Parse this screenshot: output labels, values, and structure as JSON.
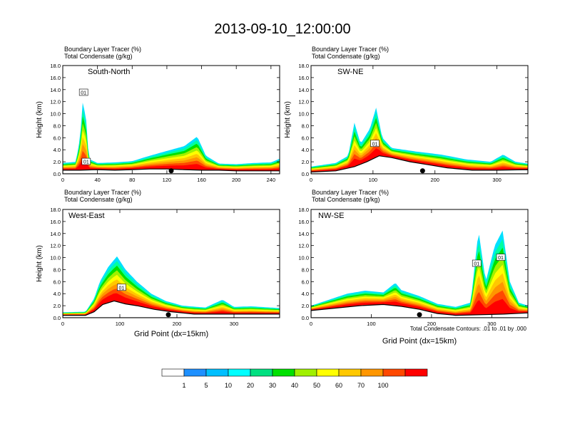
{
  "title": "2013-09-10_12:00:00",
  "field_labels": [
    "Boundary Layer Tracer   (%)",
    "Total Condensate   (g/kg)"
  ],
  "contour_info": "Total Condensate Contours: .01 to .01 by .000",
  "colorbar": {
    "levels": [
      "1",
      "5",
      "10",
      "20",
      "30",
      "40",
      "50",
      "60",
      "70",
      "100"
    ],
    "colors": [
      "#ffffff",
      "#1e90ff",
      "#00bfff",
      "#00ffff",
      "#00e080",
      "#00e000",
      "#a0f000",
      "#ffff00",
      "#ffc800",
      "#ff9600",
      "#ff4800",
      "#ff0000"
    ]
  },
  "chart_data": [
    {
      "type": "contour",
      "panel": "top-left",
      "label": "South-North",
      "ylabel": "Height (km)",
      "xlabel": "",
      "xlim": [
        0,
        250
      ],
      "ylim": [
        0,
        18
      ],
      "xticks": [
        "0",
        "40",
        "80",
        "120",
        "160",
        "200",
        "240"
      ],
      "xtick_values": [
        0,
        40,
        80,
        120,
        160,
        200,
        240
      ],
      "yticks": [
        "0.0",
        "2.0",
        "4.0",
        "6.0",
        "8.0",
        "10.0",
        "12.0",
        "14.0",
        "16.0",
        "18.0"
      ],
      "marker_x": 125,
      "contour_labels": [
        {
          "text": "01",
          "x": 24,
          "y": 13.5
        },
        {
          "text": "01",
          "x": 27,
          "y": 2.0
        }
      ],
      "terrain": [
        [
          0,
          0.6
        ],
        [
          20,
          0.6
        ],
        [
          40,
          0.7
        ],
        [
          60,
          0.6
        ],
        [
          80,
          0.7
        ],
        [
          100,
          0.8
        ],
        [
          120,
          0.8
        ],
        [
          140,
          0.7
        ],
        [
          160,
          0.6
        ],
        [
          180,
          0.6
        ],
        [
          200,
          0.5
        ],
        [
          220,
          0.5
        ],
        [
          250,
          0.5
        ]
      ],
      "tracer_top": [
        [
          0,
          1.8
        ],
        [
          15,
          2.0
        ],
        [
          20,
          6.0
        ],
        [
          23,
          12.0
        ],
        [
          27,
          9.0
        ],
        [
          30,
          2.5
        ],
        [
          40,
          1.8
        ],
        [
          60,
          1.9
        ],
        [
          80,
          2.1
        ],
        [
          100,
          3.0
        ],
        [
          120,
          3.8
        ],
        [
          140,
          4.6
        ],
        [
          155,
          6.2
        ],
        [
          165,
          3.0
        ],
        [
          180,
          1.7
        ],
        [
          200,
          1.6
        ],
        [
          220,
          1.8
        ],
        [
          240,
          1.9
        ],
        [
          250,
          2.5
        ]
      ]
    },
    {
      "type": "contour",
      "panel": "top-right",
      "label": "SW-NE",
      "ylabel": "Height (km)",
      "xlabel": "",
      "xlim": [
        0,
        350
      ],
      "ylim": [
        0,
        18
      ],
      "xticks": [
        "0",
        "100",
        "200",
        "300"
      ],
      "xtick_values": [
        0,
        100,
        200,
        300
      ],
      "yticks": [
        "0.0",
        "2.0",
        "4.0",
        "6.0",
        "8.0",
        "10.0",
        "12.0",
        "14.0",
        "16.0",
        "18.0"
      ],
      "marker_x": 180,
      "contour_labels": [
        {
          "text": "01",
          "x": 103,
          "y": 5.0
        }
      ],
      "terrain": [
        [
          0,
          0.3
        ],
        [
          40,
          0.5
        ],
        [
          70,
          1.2
        ],
        [
          90,
          2.0
        ],
        [
          110,
          3.0
        ],
        [
          130,
          2.7
        ],
        [
          160,
          2.0
        ],
        [
          190,
          1.5
        ],
        [
          220,
          1.0
        ],
        [
          260,
          0.6
        ],
        [
          300,
          0.6
        ],
        [
          350,
          0.7
        ]
      ],
      "tracer_top": [
        [
          0,
          1.2
        ],
        [
          40,
          1.8
        ],
        [
          60,
          3.0
        ],
        [
          70,
          8.5
        ],
        [
          80,
          5.0
        ],
        [
          95,
          7.5
        ],
        [
          105,
          11.0
        ],
        [
          115,
          6.0
        ],
        [
          130,
          4.3
        ],
        [
          170,
          3.7
        ],
        [
          210,
          3.2
        ],
        [
          250,
          2.4
        ],
        [
          290,
          2.0
        ],
        [
          310,
          3.2
        ],
        [
          330,
          2.0
        ],
        [
          350,
          1.7
        ]
      ]
    },
    {
      "type": "contour",
      "panel": "bottom-left",
      "label": "West-East",
      "ylabel": "Height (km)",
      "xlabel": "Grid Point (dx=15km)",
      "xlim": [
        0,
        380
      ],
      "ylim": [
        0,
        18
      ],
      "xticks": [
        "0",
        "100",
        "200",
        "300"
      ],
      "xtick_values": [
        0,
        100,
        200,
        300
      ],
      "yticks": [
        "0.0",
        "2.0",
        "4.0",
        "6.0",
        "8.0",
        "10.0",
        "12.0",
        "14.0",
        "16.0",
        "18.0"
      ],
      "marker_x": 185,
      "contour_labels": [
        {
          "text": "01",
          "x": 103,
          "y": 5.0
        }
      ],
      "terrain": [
        [
          0,
          0.4
        ],
        [
          40,
          0.4
        ],
        [
          55,
          1.0
        ],
        [
          70,
          2.2
        ],
        [
          90,
          2.8
        ],
        [
          110,
          2.3
        ],
        [
          130,
          2.0
        ],
        [
          160,
          1.4
        ],
        [
          190,
          1.0
        ],
        [
          230,
          0.6
        ],
        [
          280,
          0.6
        ],
        [
          330,
          0.6
        ],
        [
          380,
          0.6
        ]
      ],
      "tracer_top": [
        [
          0,
          0.9
        ],
        [
          40,
          1.0
        ],
        [
          55,
          3.2
        ],
        [
          65,
          6.0
        ],
        [
          80,
          8.5
        ],
        [
          95,
          10.2
        ],
        [
          110,
          8.0
        ],
        [
          130,
          6.0
        ],
        [
          155,
          4.0
        ],
        [
          180,
          2.8
        ],
        [
          210,
          2.0
        ],
        [
          250,
          1.7
        ],
        [
          280,
          3.0
        ],
        [
          300,
          1.8
        ],
        [
          330,
          1.9
        ],
        [
          380,
          1.6
        ]
      ]
    },
    {
      "type": "contour",
      "panel": "bottom-right",
      "label": "NW-SE",
      "ylabel": "",
      "xlabel": "Grid Point (dx=15km)",
      "xlim": [
        0,
        360
      ],
      "ylim": [
        0,
        18
      ],
      "xticks": [
        "0",
        "100",
        "200",
        "300"
      ],
      "xtick_values": [
        0,
        100,
        200,
        300
      ],
      "yticks": [
        "0.0",
        "2.0",
        "4.0",
        "6.0",
        "8.0",
        "10.0",
        "12.0",
        "14.0",
        "16.0",
        "18.0"
      ],
      "marker_x": 180,
      "contour_labels": [
        {
          "text": "01",
          "x": 275,
          "y": 9.0
        },
        {
          "text": "01",
          "x": 315,
          "y": 10.0
        }
      ],
      "terrain": [
        [
          0,
          1.2
        ],
        [
          40,
          1.6
        ],
        [
          80,
          2.0
        ],
        [
          120,
          2.2
        ],
        [
          150,
          1.9
        ],
        [
          180,
          1.4
        ],
        [
          210,
          0.7
        ],
        [
          240,
          0.4
        ],
        [
          280,
          0.5
        ],
        [
          320,
          0.6
        ],
        [
          360,
          0.8
        ]
      ],
      "tracer_top": [
        [
          0,
          2.0
        ],
        [
          30,
          3.0
        ],
        [
          60,
          4.0
        ],
        [
          90,
          4.5
        ],
        [
          120,
          4.2
        ],
        [
          140,
          5.8
        ],
        [
          150,
          4.6
        ],
        [
          180,
          3.6
        ],
        [
          210,
          2.3
        ],
        [
          240,
          1.8
        ],
        [
          265,
          2.5
        ],
        [
          278,
          14.5
        ],
        [
          290,
          6.0
        ],
        [
          305,
          12.0
        ],
        [
          318,
          14.5
        ],
        [
          330,
          6.0
        ],
        [
          345,
          2.5
        ],
        [
          360,
          2.0
        ]
      ]
    }
  ]
}
